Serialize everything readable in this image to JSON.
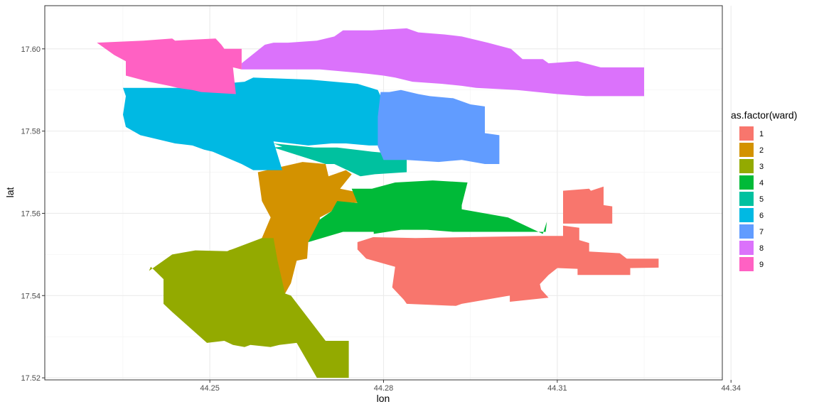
{
  "chart_data": {
    "type": "map",
    "xlabel": "lon",
    "ylabel": "lat",
    "xlim": [
      44.2215,
      44.3385
    ],
    "ylim": [
      17.5195,
      17.6105
    ],
    "x_ticks": [
      44.25,
      44.28,
      44.31,
      44.34
    ],
    "y_ticks": [
      17.52,
      17.54,
      17.56,
      17.58,
      17.6
    ],
    "x_tick_labels": [
      "44.25",
      "44.28",
      "44.31",
      "44.34"
    ],
    "y_tick_labels": [
      "17.52",
      "17.54",
      "17.56",
      "17.58",
      "17.60"
    ],
    "grid": true,
    "legend": {
      "title": "as.factor(ward)",
      "position": "right",
      "entries": [
        {
          "label": "1",
          "color": "#F8766D"
        },
        {
          "label": "2",
          "color": "#D39200"
        },
        {
          "label": "3",
          "color": "#93AA00"
        },
        {
          "label": "4",
          "color": "#00BA38"
        },
        {
          "label": "5",
          "color": "#00C19F"
        },
        {
          "label": "6",
          "color": "#00B9E3"
        },
        {
          "label": "7",
          "color": "#619CFF"
        },
        {
          "label": "8",
          "color": "#DB72FB"
        },
        {
          "label": "9",
          "color": "#FF61C3"
        }
      ]
    },
    "series": [
      {
        "ward": "1",
        "color": "#F8766D",
        "points": [
          [
            44.2782,
            17.5542
          ],
          [
            44.2855,
            17.554
          ],
          [
            44.3068,
            17.5545
          ],
          [
            44.311,
            17.5545
          ],
          [
            44.311,
            17.557
          ],
          [
            44.3138,
            17.5565
          ],
          [
            44.3138,
            17.5535
          ],
          [
            44.3155,
            17.5528
          ],
          [
            44.3155,
            17.5507
          ],
          [
            44.3208,
            17.5503
          ],
          [
            44.322,
            17.549
          ],
          [
            44.3275,
            17.549
          ],
          [
            44.3275,
            17.5468
          ],
          [
            44.3226,
            17.5467
          ],
          [
            44.3226,
            17.545
          ],
          [
            44.32,
            17.545
          ],
          [
            44.3135,
            17.545
          ],
          [
            44.3135,
            17.5465
          ],
          [
            44.31,
            17.5467
          ],
          [
            44.3085,
            17.545
          ],
          [
            44.307,
            17.5428
          ],
          [
            44.3072,
            17.5415
          ],
          [
            44.3085,
            17.5395
          ],
          [
            44.3018,
            17.5385
          ],
          [
            44.3018,
            17.54
          ],
          [
            44.2935,
            17.538
          ],
          [
            44.2925,
            17.5375
          ],
          [
            44.284,
            17.538
          ],
          [
            44.2835,
            17.539
          ],
          [
            44.2815,
            17.542
          ],
          [
            44.282,
            17.547
          ],
          [
            44.277,
            17.549
          ],
          [
            44.2755,
            17.5512
          ],
          [
            44.2755,
            17.553
          ]
        ]
      },
      {
        "ward": "1",
        "color": "#F8766D",
        "points": [
          [
            44.311,
            17.5575
          ],
          [
            44.311,
            17.5655
          ],
          [
            44.3155,
            17.566
          ],
          [
            44.3158,
            17.5655
          ],
          [
            44.318,
            17.5665
          ],
          [
            44.318,
            17.562
          ],
          [
            44.3195,
            17.5617
          ],
          [
            44.3195,
            17.5575
          ]
        ]
      },
      {
        "ward": "2",
        "color": "#D39200",
        "points": [
          [
            44.2583,
            17.57
          ],
          [
            44.266,
            17.5725
          ],
          [
            44.27,
            17.572
          ],
          [
            44.2705,
            17.569
          ],
          [
            44.2735,
            17.5705
          ],
          [
            44.2745,
            17.5695
          ],
          [
            44.2725,
            17.566
          ],
          [
            44.276,
            17.565
          ],
          [
            44.276,
            17.5625
          ],
          [
            44.272,
            17.5628
          ],
          [
            44.271,
            17.5605
          ],
          [
            44.269,
            17.559
          ],
          [
            44.269,
            17.557
          ],
          [
            44.267,
            17.553
          ],
          [
            44.2668,
            17.549
          ],
          [
            44.265,
            17.5485
          ],
          [
            44.264,
            17.543
          ],
          [
            44.263,
            17.5405
          ],
          [
            44.2598,
            17.5535
          ],
          [
            44.256,
            17.552
          ],
          [
            44.2532,
            17.551
          ],
          [
            44.2545,
            17.5508
          ],
          [
            44.259,
            17.554
          ],
          [
            44.2605,
            17.559
          ],
          [
            44.259,
            17.563
          ]
        ]
      },
      {
        "ward": "3",
        "color": "#93AA00",
        "points": [
          [
            44.2398,
            17.547
          ],
          [
            44.2395,
            17.546
          ],
          [
            44.2435,
            17.55
          ],
          [
            44.2475,
            17.551
          ],
          [
            44.253,
            17.5508
          ],
          [
            44.259,
            17.554
          ],
          [
            44.261,
            17.554
          ],
          [
            44.2617,
            17.5485
          ],
          [
            44.263,
            17.5405
          ],
          [
            44.264,
            17.54
          ],
          [
            44.27,
            17.529
          ],
          [
            44.274,
            17.529
          ],
          [
            44.274,
            17.52
          ],
          [
            44.2685,
            17.52
          ],
          [
            44.265,
            17.5285
          ],
          [
            44.262,
            17.528
          ],
          [
            44.2605,
            17.5275
          ],
          [
            44.257,
            17.528
          ],
          [
            44.256,
            17.5275
          ],
          [
            44.254,
            17.528
          ],
          [
            44.2525,
            17.529
          ],
          [
            44.2495,
            17.5285
          ],
          [
            44.2435,
            17.536
          ],
          [
            44.242,
            17.538
          ],
          [
            44.242,
            17.544
          ]
        ]
      },
      {
        "ward": "4",
        "color": "#00BA38",
        "points": [
          [
            44.267,
            17.553
          ],
          [
            44.273,
            17.5555
          ],
          [
            44.2783,
            17.5555
          ],
          [
            44.2783,
            17.555
          ],
          [
            44.283,
            17.556
          ],
          [
            44.2875,
            17.556
          ],
          [
            44.292,
            17.5555
          ],
          [
            44.308,
            17.5555
          ],
          [
            44.3082,
            17.558
          ],
          [
            44.3075,
            17.555
          ],
          [
            44.3015,
            17.559
          ],
          [
            44.2935,
            17.561
          ],
          [
            44.2935,
            17.562
          ],
          [
            44.2945,
            17.5675
          ],
          [
            44.2885,
            17.568
          ],
          [
            44.282,
            17.5675
          ],
          [
            44.278,
            17.566
          ],
          [
            44.2745,
            17.566
          ],
          [
            44.2755,
            17.5625
          ],
          [
            44.272,
            17.563
          ],
          [
            44.271,
            17.5605
          ],
          [
            44.269,
            17.5585
          ]
        ]
      },
      {
        "ward": "5",
        "color": "#00C19F",
        "points": [
          [
            44.261,
            17.576
          ],
          [
            44.2625,
            17.5762
          ],
          [
            44.261,
            17.577
          ],
          [
            44.268,
            17.576
          ],
          [
            44.272,
            17.576
          ],
          [
            44.278,
            17.575
          ],
          [
            44.282,
            17.5745
          ],
          [
            44.284,
            17.5745
          ],
          [
            44.284,
            17.57
          ],
          [
            44.2785,
            17.5695
          ],
          [
            44.276,
            17.569
          ],
          [
            44.2715,
            17.572
          ],
          [
            44.27,
            17.572
          ]
        ]
      },
      {
        "ward": "6",
        "color": "#00B9E3",
        "points": [
          [
            44.235,
            17.5905
          ],
          [
            44.2355,
            17.5885
          ],
          [
            44.235,
            17.584
          ],
          [
            44.2355,
            17.581
          ],
          [
            44.238,
            17.579
          ],
          [
            44.244,
            17.577
          ],
          [
            44.247,
            17.5765
          ],
          [
            44.249,
            17.5755
          ],
          [
            44.2505,
            17.575
          ],
          [
            44.2555,
            17.572
          ],
          [
            44.2575,
            17.5705
          ],
          [
            44.261,
            17.5705
          ],
          [
            44.2625,
            17.5705
          ],
          [
            44.261,
            17.5775
          ],
          [
            44.267,
            17.5765
          ],
          [
            44.271,
            17.577
          ],
          [
            44.2735,
            17.577
          ],
          [
            44.2775,
            17.5765
          ],
          [
            44.279,
            17.5765
          ],
          [
            44.2795,
            17.579
          ],
          [
            44.28,
            17.5835
          ],
          [
            44.28,
            17.587
          ],
          [
            44.279,
            17.59
          ],
          [
            44.2755,
            17.5915
          ],
          [
            44.2675,
            17.5925
          ],
          [
            44.2575,
            17.593
          ],
          [
            44.256,
            17.592
          ],
          [
            44.252,
            17.5915
          ],
          [
            44.245,
            17.5905
          ]
        ]
      },
      {
        "ward": "7",
        "color": "#619CFF",
        "points": [
          [
            44.279,
            17.5763
          ],
          [
            44.28,
            17.573
          ],
          [
            44.284,
            17.573
          ],
          [
            44.2895,
            17.5725
          ],
          [
            44.2935,
            17.573
          ],
          [
            44.2975,
            17.572
          ],
          [
            44.3,
            17.572
          ],
          [
            44.3,
            17.579
          ],
          [
            44.2975,
            17.5795
          ],
          [
            44.2975,
            17.586
          ],
          [
            44.295,
            17.5865
          ],
          [
            44.292,
            17.588
          ],
          [
            44.288,
            17.5885
          ],
          [
            44.286,
            17.589
          ],
          [
            44.283,
            17.59
          ],
          [
            44.281,
            17.5895
          ],
          [
            44.2795,
            17.5895
          ],
          [
            44.279,
            17.5835
          ]
        ]
      },
      {
        "ward": "8",
        "color": "#DB72FB",
        "points": [
          [
            44.2555,
            17.5965
          ],
          [
            44.2555,
            17.595
          ],
          [
            44.26,
            17.595
          ],
          [
            44.264,
            17.595
          ],
          [
            44.269,
            17.595
          ],
          [
            44.277,
            17.594
          ],
          [
            44.28,
            17.5935
          ],
          [
            44.282,
            17.593
          ],
          [
            44.285,
            17.592
          ],
          [
            44.29,
            17.5915
          ],
          [
            44.2935,
            17.591
          ],
          [
            44.296,
            17.5905
          ],
          [
            44.303,
            17.59
          ],
          [
            44.31,
            17.589
          ],
          [
            44.315,
            17.5885
          ],
          [
            44.319,
            17.5885
          ],
          [
            44.324,
            17.5885
          ],
          [
            44.325,
            17.5885
          ],
          [
            44.325,
            17.5955
          ],
          [
            44.3175,
            17.5955
          ],
          [
            44.3135,
            17.597
          ],
          [
            44.3085,
            17.5965
          ],
          [
            44.3075,
            17.5975
          ],
          [
            44.304,
            17.5975
          ],
          [
            44.302,
            17.6
          ],
          [
            44.298,
            17.6015
          ],
          [
            44.2935,
            17.603
          ],
          [
            44.2905,
            17.6035
          ],
          [
            44.286,
            17.604
          ],
          [
            44.284,
            17.605
          ],
          [
            44.278,
            17.6045
          ],
          [
            44.273,
            17.6045
          ],
          [
            44.2715,
            17.603
          ],
          [
            44.2685,
            17.602
          ],
          [
            44.2635,
            17.6015
          ],
          [
            44.261,
            17.6015
          ],
          [
            44.2595,
            17.601
          ]
        ]
      },
      {
        "ward": "9",
        "color": "#FF61C3",
        "points": [
          [
            44.2305,
            17.6015
          ],
          [
            44.2385,
            17.602
          ],
          [
            44.2435,
            17.6025
          ],
          [
            44.244,
            17.602
          ],
          [
            44.251,
            17.6025
          ],
          [
            44.252,
            17.601
          ],
          [
            44.2525,
            17.6
          ],
          [
            44.2555,
            17.6
          ],
          [
            44.2555,
            17.595
          ],
          [
            44.254,
            17.5955
          ],
          [
            44.2545,
            17.589
          ],
          [
            44.2485,
            17.5895
          ],
          [
            44.247,
            17.59
          ],
          [
            44.2445,
            17.5905
          ],
          [
            44.243,
            17.591
          ],
          [
            44.2395,
            17.592
          ],
          [
            44.2355,
            17.5935
          ],
          [
            44.2355,
            17.597
          ],
          [
            44.2335,
            17.5985
          ]
        ]
      }
    ]
  }
}
